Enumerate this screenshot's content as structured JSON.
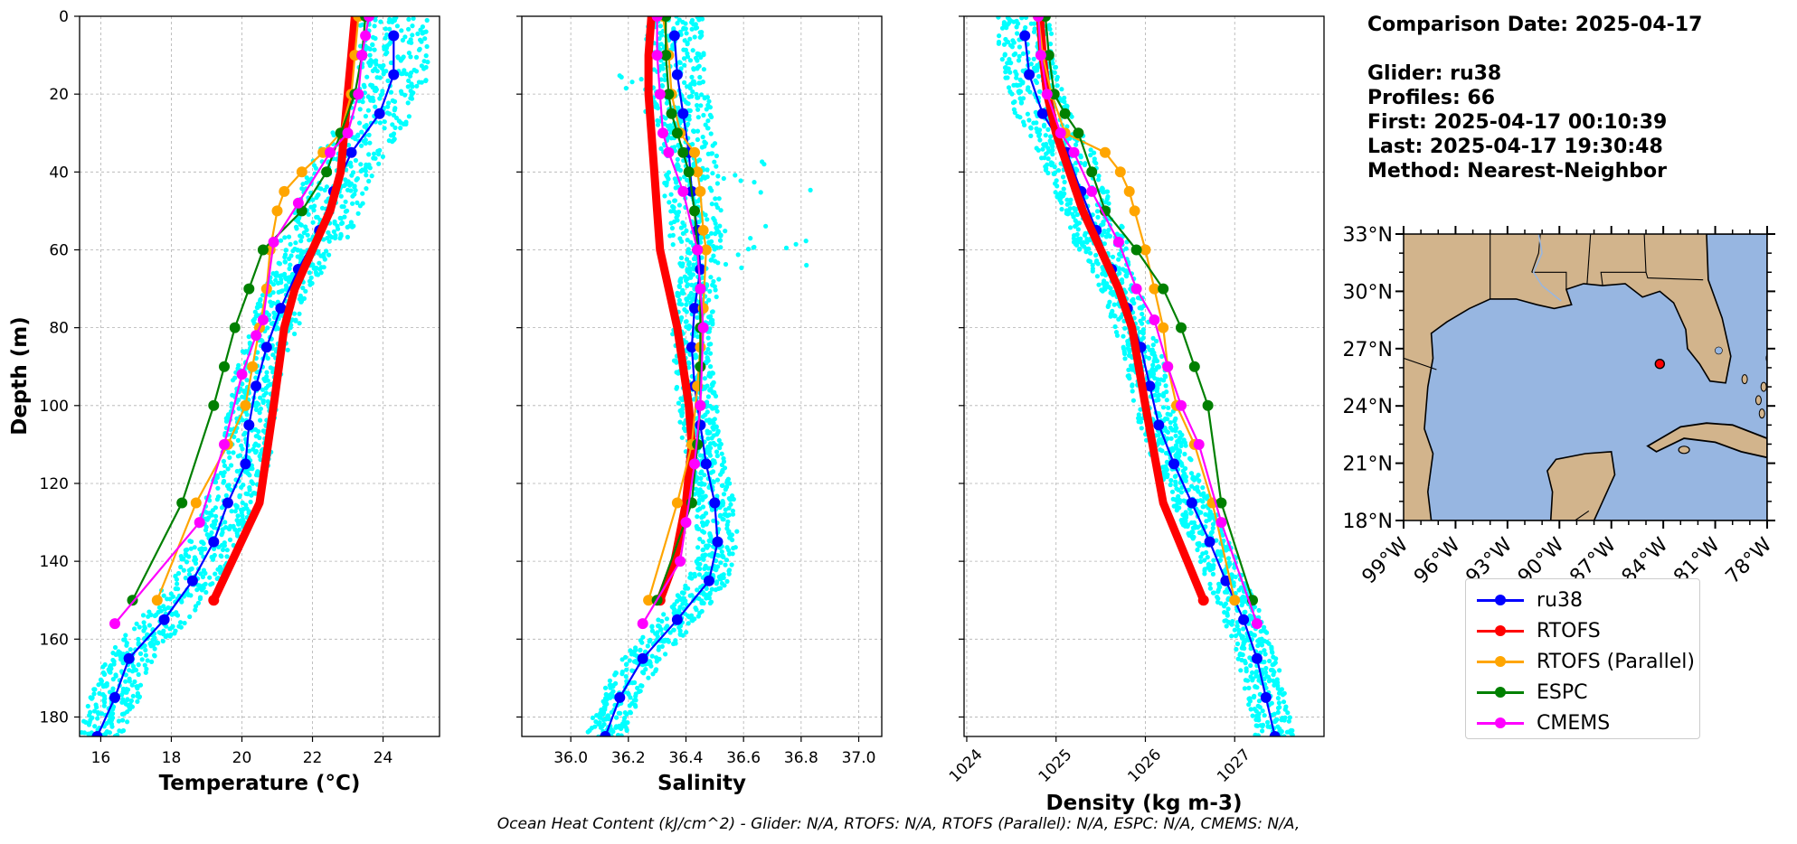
{
  "info": {
    "title": "Comparison Date: 2025-04-17",
    "glider": "Glider: ru38",
    "profiles": "Profiles: 66",
    "first": "First: 2025-04-17 00:10:39",
    "last": "Last: 2025-04-17 19:30:48",
    "method": "Method: Nearest-Neighbor"
  },
  "footer": "Ocean Heat Content (kJ/cm^2) - Glider: N/A,  RTOFS: N/A,  RTOFS (Parallel): N/A,  ESPC: N/A,  CMEMS: N/A,",
  "colors": {
    "ru38": "#0000ff",
    "rtofs": "#ff0000",
    "rtofs_parallel": "#ffa500",
    "espc": "#008000",
    "cmems": "#ff00ff",
    "glider_scatter": "#00ffff",
    "land": "#d2b48c",
    "ocean": "#97b6e1"
  },
  "legend": [
    {
      "key": "ru38",
      "label": "ru38"
    },
    {
      "key": "rtofs",
      "label": "RTOFS"
    },
    {
      "key": "rtofs_parallel",
      "label": "RTOFS (Parallel)"
    },
    {
      "key": "espc",
      "label": "ESPC"
    },
    {
      "key": "cmems",
      "label": "CMEMS"
    }
  ],
  "chart_data": [
    {
      "type": "line",
      "xlabel": "Temperature (°C)",
      "ylabel": "Depth (m)",
      "xlim": [
        15.4,
        25.6
      ],
      "ylim": [
        185,
        0
      ],
      "xticks": [
        "16",
        "18",
        "20",
        "22",
        "24"
      ],
      "yticks": [
        "0",
        "20",
        "40",
        "60",
        "80",
        "100",
        "120",
        "140",
        "160",
        "180"
      ],
      "grid": true,
      "series": [
        {
          "name": "ru38",
          "points": [
            [
              24.3,
              5
            ],
            [
              24.3,
              15
            ],
            [
              23.9,
              25
            ],
            [
              23.1,
              35
            ],
            [
              22.6,
              45
            ],
            [
              22.2,
              55
            ],
            [
              21.6,
              65
            ],
            [
              21.1,
              75
            ],
            [
              20.7,
              85
            ],
            [
              20.4,
              95
            ],
            [
              20.2,
              105
            ],
            [
              20.1,
              115
            ],
            [
              19.6,
              125
            ],
            [
              19.2,
              135
            ],
            [
              18.6,
              145
            ],
            [
              17.8,
              155
            ],
            [
              16.8,
              165
            ],
            [
              16.4,
              175
            ],
            [
              15.9,
              185
            ]
          ]
        },
        {
          "name": "RTOFS",
          "points": [
            [
              23.2,
              0
            ],
            [
              23.1,
              10
            ],
            [
              23.0,
              20
            ],
            [
              22.9,
              30
            ],
            [
              22.8,
              40
            ],
            [
              22.5,
              50
            ],
            [
              22.0,
              60
            ],
            [
              21.5,
              70
            ],
            [
              21.2,
              80
            ],
            [
              20.9,
              100
            ],
            [
              20.5,
              125
            ],
            [
              19.2,
              150
            ]
          ]
        },
        {
          "name": "RTOFS (Parallel)",
          "points": [
            [
              23.3,
              0
            ],
            [
              23.2,
              10
            ],
            [
              23.1,
              20
            ],
            [
              22.8,
              30
            ],
            [
              22.3,
              35
            ],
            [
              21.7,
              40
            ],
            [
              21.2,
              45
            ],
            [
              21.0,
              50
            ],
            [
              20.8,
              60
            ],
            [
              20.7,
              70
            ],
            [
              20.5,
              80
            ],
            [
              20.3,
              90
            ],
            [
              20.1,
              100
            ],
            [
              19.6,
              110
            ],
            [
              18.7,
              125
            ],
            [
              17.6,
              150
            ]
          ]
        },
        {
          "name": "ESPC",
          "points": [
            [
              23.5,
              0
            ],
            [
              23.4,
              10
            ],
            [
              23.2,
              20
            ],
            [
              22.8,
              30
            ],
            [
              22.4,
              40
            ],
            [
              21.7,
              50
            ],
            [
              20.6,
              60
            ],
            [
              20.2,
              70
            ],
            [
              19.8,
              80
            ],
            [
              19.5,
              90
            ],
            [
              19.2,
              100
            ],
            [
              18.3,
              125
            ],
            [
              16.9,
              150
            ]
          ]
        },
        {
          "name": "CMEMS",
          "points": [
            [
              23.6,
              0
            ],
            [
              23.5,
              5
            ],
            [
              23.4,
              10
            ],
            [
              23.3,
              20
            ],
            [
              23.0,
              30
            ],
            [
              22.5,
              35
            ],
            [
              21.6,
              48
            ],
            [
              20.9,
              58
            ],
            [
              20.6,
              78
            ],
            [
              20.4,
              82
            ],
            [
              20.0,
              92
            ],
            [
              19.5,
              110
            ],
            [
              18.8,
              130
            ],
            [
              16.4,
              156
            ]
          ]
        }
      ]
    },
    {
      "type": "line",
      "xlabel": "Salinity",
      "ylabel": "",
      "xlim": [
        35.83,
        37.08
      ],
      "ylim": [
        185,
        0
      ],
      "xticks": [
        "36.0",
        "36.2",
        "36.4",
        "36.6",
        "36.8",
        "37.0"
      ],
      "yticks": [],
      "grid": true,
      "series": [
        {
          "name": "ru38",
          "points": [
            [
              36.36,
              5
            ],
            [
              36.37,
              15
            ],
            [
              36.39,
              25
            ],
            [
              36.41,
              35
            ],
            [
              36.42,
              45
            ],
            [
              36.44,
              55
            ],
            [
              36.45,
              65
            ],
            [
              36.43,
              75
            ],
            [
              36.42,
              85
            ],
            [
              36.43,
              95
            ],
            [
              36.45,
              105
            ],
            [
              36.47,
              115
            ],
            [
              36.5,
              125
            ],
            [
              36.51,
              135
            ],
            [
              36.48,
              145
            ],
            [
              36.37,
              155
            ],
            [
              36.25,
              165
            ],
            [
              36.17,
              175
            ],
            [
              36.12,
              185
            ]
          ]
        },
        {
          "name": "RTOFS",
          "points": [
            [
              36.28,
              0
            ],
            [
              36.27,
              10
            ],
            [
              36.27,
              20
            ],
            [
              36.28,
              30
            ],
            [
              36.29,
              40
            ],
            [
              36.3,
              50
            ],
            [
              36.31,
              60
            ],
            [
              36.34,
              70
            ],
            [
              36.37,
              80
            ],
            [
              36.39,
              90
            ],
            [
              36.41,
              100
            ],
            [
              36.42,
              110
            ],
            [
              36.4,
              125
            ],
            [
              36.36,
              140
            ],
            [
              36.31,
              150
            ]
          ]
        },
        {
          "name": "RTOFS (Parallel)",
          "points": [
            [
              36.32,
              0
            ],
            [
              36.34,
              10
            ],
            [
              36.35,
              20
            ],
            [
              36.38,
              30
            ],
            [
              36.43,
              35
            ],
            [
              36.44,
              40
            ],
            [
              36.45,
              45
            ],
            [
              36.46,
              55
            ],
            [
              36.47,
              60
            ],
            [
              36.46,
              75
            ],
            [
              36.45,
              85
            ],
            [
              36.44,
              95
            ],
            [
              36.42,
              110
            ],
            [
              36.37,
              125
            ],
            [
              36.27,
              150
            ]
          ]
        },
        {
          "name": "ESPC",
          "points": [
            [
              36.33,
              0
            ],
            [
              36.33,
              10
            ],
            [
              36.34,
              20
            ],
            [
              36.35,
              25
            ],
            [
              36.37,
              30
            ],
            [
              36.39,
              35
            ],
            [
              36.41,
              40
            ],
            [
              36.43,
              50
            ],
            [
              36.44,
              60
            ],
            [
              36.45,
              70
            ],
            [
              36.45,
              80
            ],
            [
              36.45,
              90
            ],
            [
              36.45,
              100
            ],
            [
              36.44,
              110
            ],
            [
              36.42,
              125
            ],
            [
              36.3,
              150
            ]
          ]
        },
        {
          "name": "CMEMS",
          "points": [
            [
              36.3,
              0
            ],
            [
              36.3,
              10
            ],
            [
              36.31,
              20
            ],
            [
              36.32,
              30
            ],
            [
              36.34,
              35
            ],
            [
              36.39,
              45
            ],
            [
              36.44,
              60
            ],
            [
              36.45,
              70
            ],
            [
              36.46,
              80
            ],
            [
              36.45,
              100
            ],
            [
              36.43,
              115
            ],
            [
              36.4,
              130
            ],
            [
              36.38,
              140
            ],
            [
              36.25,
              156
            ]
          ]
        }
      ]
    },
    {
      "type": "line",
      "xlabel": "Density (kg m-3)",
      "ylabel": "",
      "xlim": [
        1023.97,
        1028.0
      ],
      "ylim": [
        185,
        0
      ],
      "xticks": [
        "1024",
        "1025",
        "1026",
        "1027"
      ],
      "yticks": [],
      "grid": true,
      "series": [
        {
          "name": "ru38",
          "points": [
            [
              1024.65,
              5
            ],
            [
              1024.7,
              15
            ],
            [
              1024.85,
              25
            ],
            [
              1025.12,
              35
            ],
            [
              1025.28,
              45
            ],
            [
              1025.45,
              55
            ],
            [
              1025.62,
              65
            ],
            [
              1025.8,
              75
            ],
            [
              1025.95,
              85
            ],
            [
              1026.05,
              95
            ],
            [
              1026.15,
              105
            ],
            [
              1026.32,
              115
            ],
            [
              1026.52,
              125
            ],
            [
              1026.72,
              135
            ],
            [
              1026.9,
              145
            ],
            [
              1027.1,
              155
            ],
            [
              1027.25,
              165
            ],
            [
              1027.35,
              175
            ],
            [
              1027.45,
              185
            ]
          ]
        },
        {
          "name": "RTOFS",
          "points": [
            [
              1024.82,
              0
            ],
            [
              1024.85,
              10
            ],
            [
              1024.9,
              20
            ],
            [
              1025.0,
              30
            ],
            [
              1025.15,
              40
            ],
            [
              1025.3,
              50
            ],
            [
              1025.5,
              60
            ],
            [
              1025.7,
              70
            ],
            [
              1025.85,
              80
            ],
            [
              1026.0,
              100
            ],
            [
              1026.2,
              125
            ],
            [
              1026.65,
              150
            ]
          ]
        },
        {
          "name": "RTOFS (Parallel)",
          "points": [
            [
              1024.8,
              0
            ],
            [
              1024.85,
              10
            ],
            [
              1024.95,
              20
            ],
            [
              1025.1,
              30
            ],
            [
              1025.55,
              35
            ],
            [
              1025.72,
              40
            ],
            [
              1025.82,
              45
            ],
            [
              1025.88,
              50
            ],
            [
              1026.0,
              60
            ],
            [
              1026.1,
              70
            ],
            [
              1026.2,
              80
            ],
            [
              1026.25,
              90
            ],
            [
              1026.35,
              100
            ],
            [
              1026.55,
              110
            ],
            [
              1026.75,
              125
            ],
            [
              1027.0,
              150
            ]
          ]
        },
        {
          "name": "ESPC",
          "points": [
            [
              1024.88,
              0
            ],
            [
              1024.92,
              10
            ],
            [
              1024.98,
              20
            ],
            [
              1025.1,
              25
            ],
            [
              1025.25,
              30
            ],
            [
              1025.4,
              40
            ],
            [
              1025.55,
              50
            ],
            [
              1025.9,
              60
            ],
            [
              1026.2,
              70
            ],
            [
              1026.4,
              80
            ],
            [
              1026.55,
              90
            ],
            [
              1026.7,
              100
            ],
            [
              1026.85,
              125
            ],
            [
              1027.2,
              150
            ]
          ]
        },
        {
          "name": "CMEMS",
          "points": [
            [
              1024.8,
              0
            ],
            [
              1024.83,
              10
            ],
            [
              1024.9,
              20
            ],
            [
              1025.05,
              30
            ],
            [
              1025.2,
              35
            ],
            [
              1025.4,
              45
            ],
            [
              1025.7,
              58
            ],
            [
              1025.9,
              70
            ],
            [
              1026.1,
              78
            ],
            [
              1026.25,
              90
            ],
            [
              1026.4,
              100
            ],
            [
              1026.6,
              110
            ],
            [
              1026.85,
              130
            ],
            [
              1027.25,
              156
            ]
          ]
        }
      ]
    },
    {
      "type": "map",
      "lat_ticks": [
        "33°N",
        "30°N",
        "27°N",
        "24°N",
        "21°N",
        "18°N"
      ],
      "lon_ticks": [
        "99°W",
        "96°W",
        "93°W",
        "90°W",
        "87°W",
        "84°W",
        "81°W",
        "78°W"
      ],
      "extent": {
        "lon": [
          -99,
          -78
        ],
        "lat": [
          18,
          33
        ]
      },
      "marker": {
        "lon": -84.2,
        "lat": 26.2
      }
    }
  ]
}
